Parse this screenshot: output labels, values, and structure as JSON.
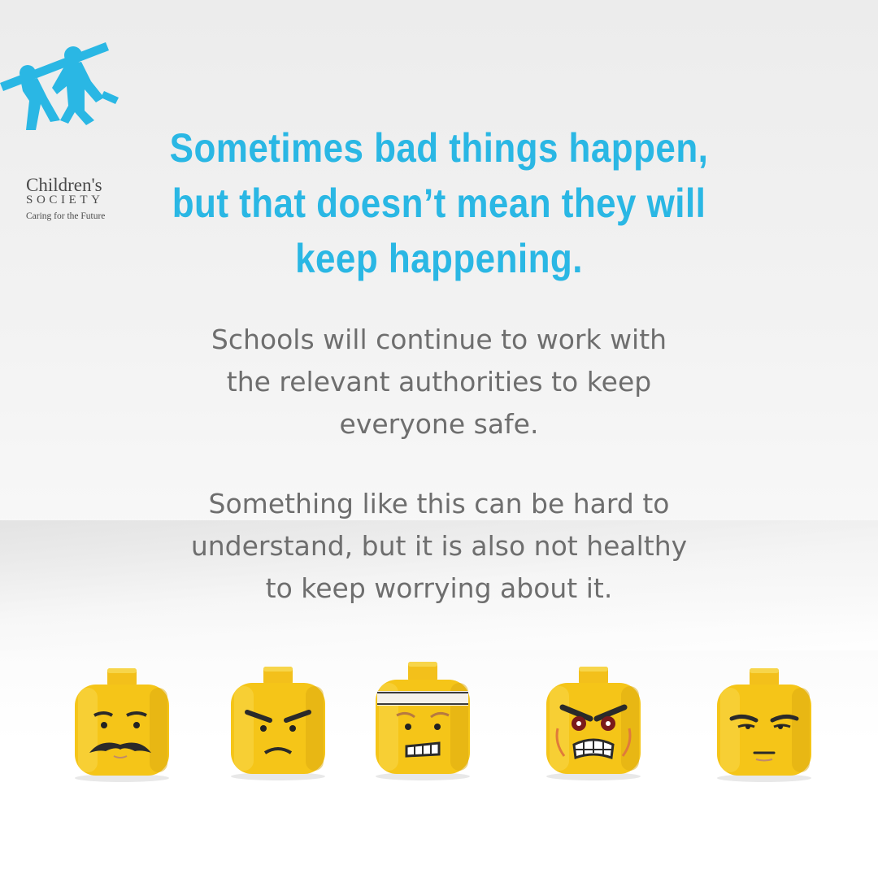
{
  "brand": {
    "name": "Children's",
    "society": "SOCIETY",
    "tagline": "Caring for the Future",
    "color": "#2ab7e4"
  },
  "headline": {
    "line1": "Sometimes bad things happen,",
    "line2": "but that doesn’t mean they will",
    "line3": "keep happening."
  },
  "paragraph1": {
    "line1": "Schools will continue to work with",
    "line2": "the relevant authorities to keep",
    "line3": "everyone safe."
  },
  "paragraph2": {
    "line1": "Something like this can be hard to",
    "line2": "understand, but it is also not healthy",
    "line3": "to keep worrying about it."
  },
  "colors": {
    "headline": "#2ab7e4",
    "body": "#6e6e6e",
    "figure_yellow": "#f5c518"
  }
}
